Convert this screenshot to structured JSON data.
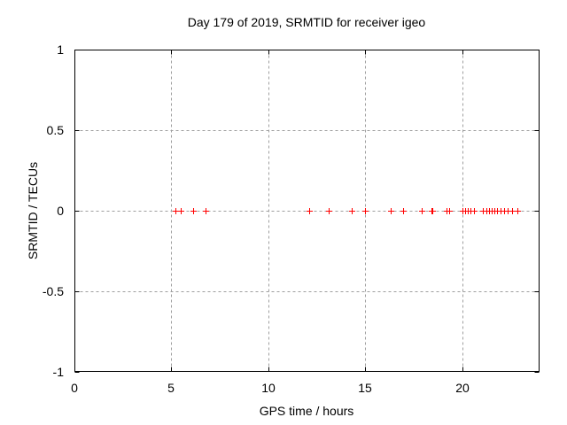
{
  "window": {
    "background": "#ffffff"
  },
  "chart_data": {
    "type": "scatter",
    "title": "Day 179 of 2019, SRMTID for receiver igeo",
    "xlabel": "GPS time / hours",
    "ylabel": "SRMTID / TECUs",
    "xlim": [
      0,
      24
    ],
    "ylim": [
      -1,
      1
    ],
    "xticks": [
      0,
      5,
      10,
      15,
      20
    ],
    "xtick_labels": [
      "0",
      "5",
      "10",
      "15",
      "20"
    ],
    "yticks": [
      -1,
      -0.5,
      0,
      0.5,
      1
    ],
    "ytick_labels": [
      "-1",
      "-0.5",
      "0",
      "0.5",
      "1"
    ],
    "grid": "dashed",
    "grid_color": "#9e9e9e",
    "border_color": "#000000",
    "legend": "none",
    "marker": "plus",
    "marker_color": "#ff0000",
    "series": [
      {
        "name": "SRMTID",
        "x": [
          5.23,
          5.5,
          6.14,
          6.78,
          12.13,
          13.12,
          14.3,
          15.01,
          16.32,
          16.96,
          17.91,
          18.42,
          18.48,
          19.21,
          19.34,
          20.02,
          20.16,
          20.3,
          20.43,
          20.62,
          21.07,
          21.24,
          21.39,
          21.54,
          21.66,
          21.79,
          21.97,
          22.16,
          22.37,
          22.57,
          22.86
        ],
        "y": [
          0,
          0,
          0,
          0,
          0,
          0,
          0,
          0,
          0,
          0,
          0,
          0,
          0,
          0,
          0,
          0,
          0,
          0,
          0,
          0,
          0,
          0,
          0,
          0,
          0,
          0,
          0,
          0,
          0,
          0,
          0
        ]
      }
    ]
  }
}
